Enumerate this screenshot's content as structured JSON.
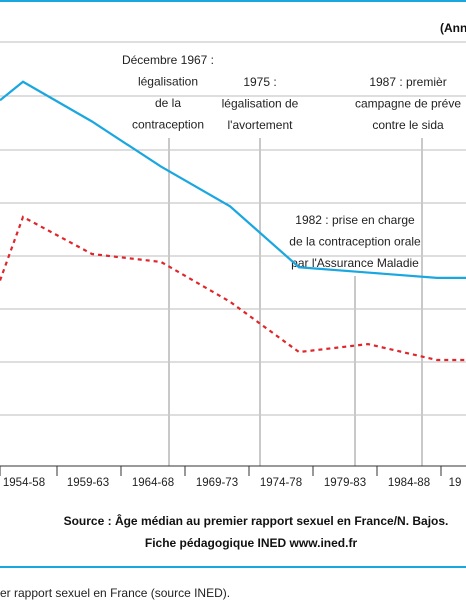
{
  "chart_data": {
    "type": "line",
    "unit_label": "(Ann",
    "categories": [
      "1954-58",
      "1959-63",
      "1964-68",
      "1969-73",
      "1974-78",
      "1979-83",
      "1984-88",
      "19"
    ],
    "series": [
      {
        "color": "#1aa7e0",
        "style": "solid",
        "values": [
          20.5,
          19.0,
          17.3,
          15.8,
          13.5,
          13.3,
          13.1,
          13.1
        ]
      },
      {
        "color": "#e0262b",
        "style": "dashed",
        "values": [
          15.4,
          14.0,
          13.7,
          12.2,
          10.3,
          10.6,
          10.0,
          10.0
        ]
      }
    ],
    "partial_start": [
      {
        "series": 0,
        "value": 19.8
      },
      {
        "series": 1,
        "value": 13.0
      }
    ],
    "annotations": [
      {
        "category": "1964-68",
        "lines": [
          "Décembre 1967 :",
          "légalisation",
          "de la",
          "contraception"
        ]
      },
      {
        "category": "1974-78",
        "lines": [
          "1975 :",
          "légalisation de",
          "l'avortement"
        ]
      },
      {
        "category": "1984-88",
        "lines": [
          "1987 : premièr",
          "campagne de préve",
          "contre le sida"
        ]
      },
      {
        "category": "1979-83",
        "lines": [
          "1982 : prise en charge",
          "de la contraception orale",
          "par l'Assurance Maladie"
        ]
      }
    ]
  },
  "source_lines": [
    "Source : Âge médian au premier rapport sexuel en France/N. Bajos.",
    "Fiche pédagogique INED www.ined.fr"
  ],
  "caption": "er rapport sexuel en France (source INED)."
}
